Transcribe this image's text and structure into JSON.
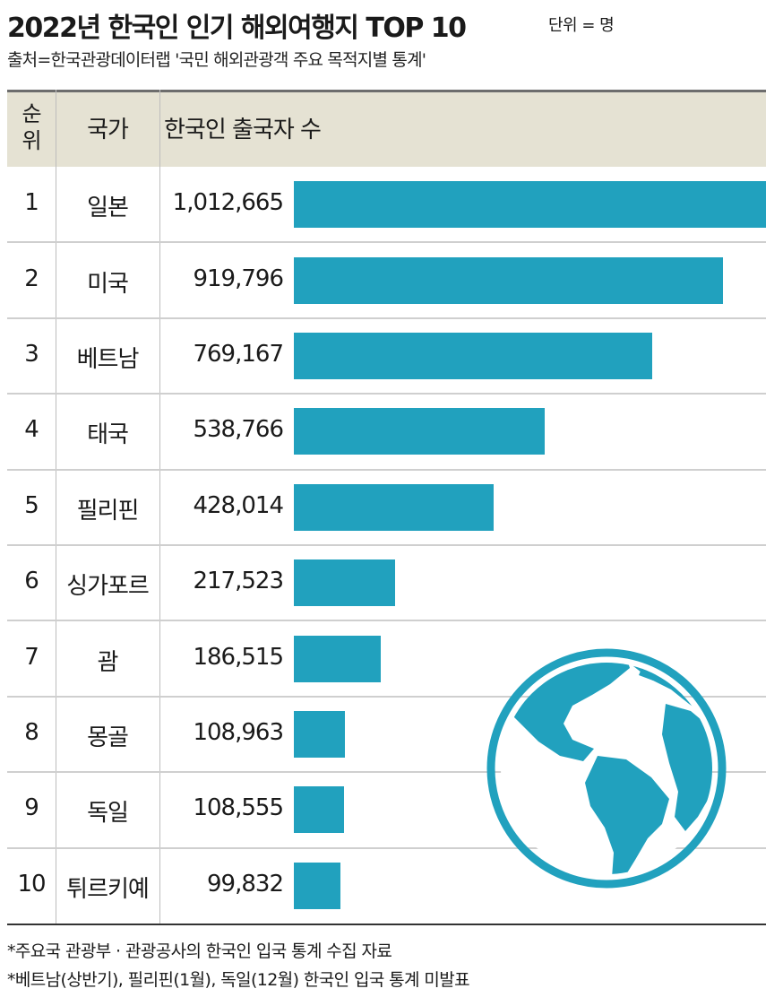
{
  "title": "2022년 한국인 인기 해외여행지 TOP 10",
  "unit": "단위 = 명",
  "source": "출처=한국관광데이터랩 '국민 해외관광객 주요 목적지별 통계'",
  "headers": {
    "rank": "순위",
    "rank_top": "순",
    "rank_bottom": "위",
    "country": "국가",
    "value": "한국인 출국자 수"
  },
  "rows": [
    {
      "rank": "1",
      "country": "일본",
      "value_label": "1,012,665"
    },
    {
      "rank": "2",
      "country": "미국",
      "value_label": "919,796"
    },
    {
      "rank": "3",
      "country": "베트남",
      "value_label": "769,167"
    },
    {
      "rank": "4",
      "country": "태국",
      "value_label": "538,766"
    },
    {
      "rank": "5",
      "country": "필리핀",
      "value_label": "428,014"
    },
    {
      "rank": "6",
      "country": "싱가포르",
      "value_label": "217,523"
    },
    {
      "rank": "7",
      "country": "괌",
      "value_label": "186,515"
    },
    {
      "rank": "8",
      "country": "몽골",
      "value_label": "108,963"
    },
    {
      "rank": "9",
      "country": "독일",
      "value_label": "108,555"
    },
    {
      "rank": "10",
      "country": "튀르키예",
      "value_label": "99,832"
    }
  ],
  "footnotes": [
    "*주요국 관광부 · 관광공사의 한국인 입국 통계 수집 자료",
    "*베트남(상반기), 필리핀(1월), 독일(12월) 한국인 입국 통계 미발표"
  ],
  "colors": {
    "bar": "#21a1be",
    "header_band": "#e5e2d3",
    "globe": "#21a1be"
  },
  "icons": {
    "globe": "globe-icon"
  },
  "chart_data": {
    "type": "bar",
    "orientation": "horizontal",
    "title": "2022년 한국인 인기 해외여행지 TOP 10",
    "unit": "단위 = 명",
    "categories": [
      "일본",
      "미국",
      "베트남",
      "태국",
      "필리핀",
      "싱가포르",
      "괌",
      "몽골",
      "독일",
      "튀르키예"
    ],
    "values": [
      1012665,
      919796,
      769167,
      538766,
      428014,
      217523,
      186515,
      108963,
      108555,
      99832
    ],
    "xlim": [
      0,
      1012665
    ],
    "grid": false,
    "legend": "none"
  }
}
